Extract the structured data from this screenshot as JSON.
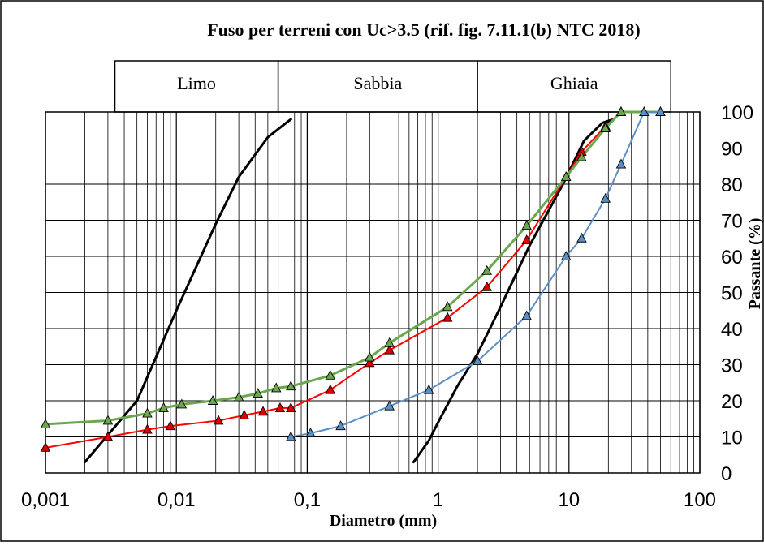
{
  "chart_data": {
    "type": "scatter",
    "title": "Fuso per terreni con Uc>3.5 (rif. fig. 7.11.1(b) NTC 2018)",
    "xlabel": "Diametro (mm)",
    "ylabel": "Passante (%)",
    "x_scale": "log",
    "xlim": [
      0.001,
      100
    ],
    "ylim": [
      0,
      100
    ],
    "x_ticks": [
      "0,001",
      "0,01",
      "0,1",
      "1",
      "10",
      "100"
    ],
    "y_ticks": [
      "0",
      "10",
      "20",
      "30",
      "40",
      "50",
      "60",
      "70",
      "80",
      "90",
      "100"
    ],
    "grid": true,
    "bands": [
      {
        "label": "Limo",
        "from": 0.002,
        "to": 0.06
      },
      {
        "label": "Sabbia",
        "from": 0.06,
        "to": 2
      },
      {
        "label": "Ghiaia",
        "from": 2,
        "to": 60
      }
    ],
    "series": [
      {
        "color": "#000000",
        "marker": "none",
        "width": 3,
        "points": [
          [
            0.002,
            3
          ],
          [
            0.005,
            20
          ],
          [
            0.01,
            45
          ],
          [
            0.02,
            69
          ],
          [
            0.03,
            82
          ],
          [
            0.05,
            93
          ],
          [
            0.075,
            98
          ]
        ]
      },
      {
        "color": "#000000",
        "marker": "none",
        "width": 3,
        "points": [
          [
            0.65,
            3
          ],
          [
            0.85,
            9
          ],
          [
            1.0,
            14
          ],
          [
            1.4,
            24
          ],
          [
            2.0,
            33
          ],
          [
            3.0,
            46
          ],
          [
            5.0,
            63
          ],
          [
            9.0,
            80
          ],
          [
            13.0,
            92
          ],
          [
            18.0,
            97
          ],
          [
            22.0,
            98
          ]
        ]
      },
      {
        "color": "#ff0000",
        "marker": "triangle",
        "marker_fill": "#e00000",
        "width": 2,
        "points": [
          [
            0.001,
            7
          ],
          [
            0.003,
            10
          ],
          [
            0.006,
            12
          ],
          [
            0.009,
            13
          ],
          [
            0.021,
            14.5
          ],
          [
            0.033,
            16
          ],
          [
            0.046,
            17
          ],
          [
            0.062,
            18
          ],
          [
            0.075,
            18
          ],
          [
            0.15,
            23
          ],
          [
            0.3,
            30.5
          ],
          [
            0.425,
            34
          ],
          [
            1.18,
            43
          ],
          [
            2.36,
            51.5
          ],
          [
            4.75,
            64.5
          ],
          [
            9.5,
            82
          ],
          [
            12.5,
            89
          ],
          [
            19,
            96
          ],
          [
            25,
            100
          ]
        ]
      },
      {
        "color": "#6aa84f",
        "marker": "triangle",
        "marker_fill": "#6aa84f",
        "width": 3,
        "points": [
          [
            0.001,
            13.5
          ],
          [
            0.003,
            14.5
          ],
          [
            0.006,
            16.5
          ],
          [
            0.008,
            18
          ],
          [
            0.011,
            19
          ],
          [
            0.019,
            20
          ],
          [
            0.03,
            21
          ],
          [
            0.042,
            22
          ],
          [
            0.058,
            23.5
          ],
          [
            0.075,
            24
          ],
          [
            0.15,
            27
          ],
          [
            0.3,
            32
          ],
          [
            0.425,
            36
          ],
          [
            1.18,
            46
          ],
          [
            2.36,
            56
          ],
          [
            4.75,
            68.5
          ],
          [
            9.5,
            82
          ],
          [
            12.5,
            87.5
          ],
          [
            19,
            95.5
          ],
          [
            25,
            100
          ],
          [
            50,
            100
          ]
        ]
      },
      {
        "color": "#5b8fc4",
        "marker": "triangle",
        "marker_fill": "#5b8fc4",
        "width": 2,
        "points": [
          [
            0.075,
            10
          ],
          [
            0.106,
            11
          ],
          [
            0.18,
            13
          ],
          [
            0.425,
            18.5
          ],
          [
            0.85,
            23
          ],
          [
            2.0,
            31
          ],
          [
            4.75,
            43.5
          ],
          [
            9.5,
            60
          ],
          [
            12.5,
            65
          ],
          [
            19,
            76
          ],
          [
            25,
            85.5
          ],
          [
            37.5,
            100
          ],
          [
            50,
            100
          ]
        ]
      }
    ]
  }
}
